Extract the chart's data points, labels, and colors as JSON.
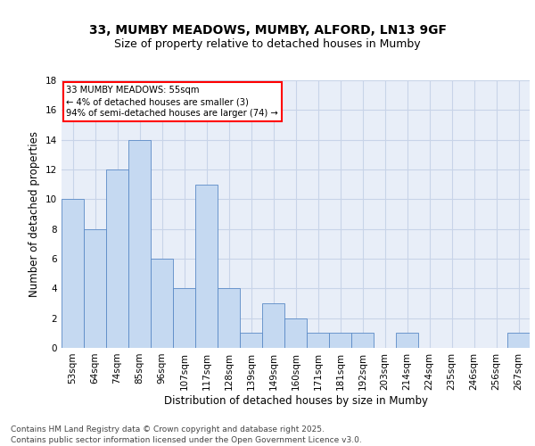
{
  "title_line1": "33, MUMBY MEADOWS, MUMBY, ALFORD, LN13 9GF",
  "title_line2": "Size of property relative to detached houses in Mumby",
  "xlabel": "Distribution of detached houses by size in Mumby",
  "ylabel": "Number of detached properties",
  "categories": [
    "53sqm",
    "64sqm",
    "74sqm",
    "85sqm",
    "96sqm",
    "107sqm",
    "117sqm",
    "128sqm",
    "139sqm",
    "149sqm",
    "160sqm",
    "171sqm",
    "181sqm",
    "192sqm",
    "203sqm",
    "214sqm",
    "224sqm",
    "235sqm",
    "246sqm",
    "256sqm",
    "267sqm"
  ],
  "values": [
    10,
    8,
    12,
    14,
    6,
    4,
    11,
    4,
    1,
    3,
    2,
    1,
    1,
    1,
    0,
    1,
    0,
    0,
    0,
    0,
    1
  ],
  "bar_color": "#c5d9f1",
  "bar_edge_color": "#5a8ac6",
  "highlight_box_text": "33 MUMBY MEADOWS: 55sqm\n← 4% of detached houses are smaller (3)\n94% of semi-detached houses are larger (74) →",
  "ylim": [
    0,
    18
  ],
  "yticks": [
    0,
    2,
    4,
    6,
    8,
    10,
    12,
    14,
    16,
    18
  ],
  "grid_color": "#c8d4e8",
  "background_color": "#e8eef8",
  "footer_text": "Contains HM Land Registry data © Crown copyright and database right 2025.\nContains public sector information licensed under the Open Government Licence v3.0.",
  "title_fontsize": 10,
  "subtitle_fontsize": 9,
  "axis_label_fontsize": 8.5,
  "tick_fontsize": 7.5,
  "footer_fontsize": 6.5
}
